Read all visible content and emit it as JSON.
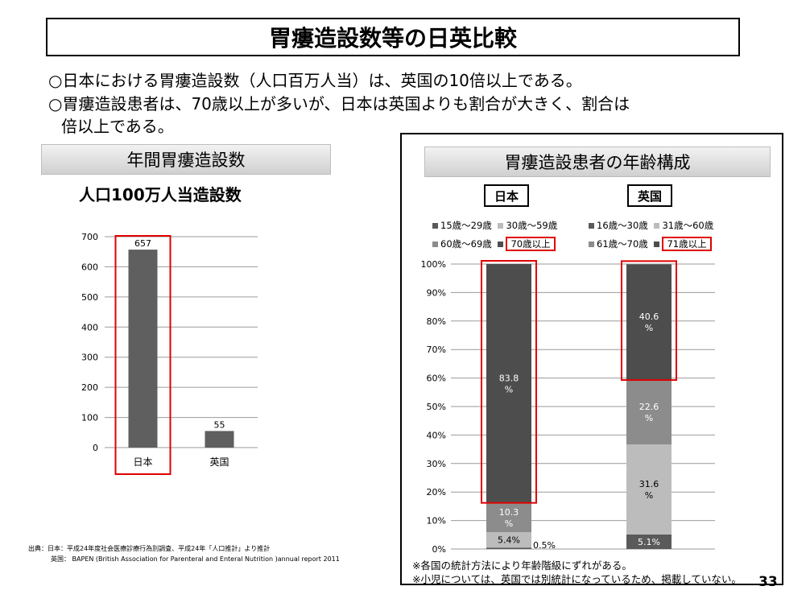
{
  "title": "胃瘻造設数等の日英比較",
  "bullets": [
    "○日本における胃瘻造設数（人口百万人当）は、英国の10倍以上である。",
    "○胃瘻造設患者は、70歳以上が多いが、日本は英国よりも割合が大きく、割合は",
    "倍以上である。"
  ],
  "left_section": {
    "header": "年間胃瘻造設数",
    "subtitle": "人口100万人当造設数"
  },
  "right_section": {
    "header": "胃瘻造設患者の年齢構成",
    "countries": [
      "日本",
      "英国"
    ],
    "legend_japan": [
      "15歳～29歳",
      "30歳～59歳",
      "60歳～69歳",
      "70歳以上"
    ],
    "legend_uk": [
      "16歳～30歳",
      "31歳～60歳",
      "61歳～70歳",
      "71歳以上"
    ]
  },
  "notes": [
    "※各国の統計方法により年齢階級にずれがある。",
    "※小児については、英国では別統計になっているため、掲載していない。"
  ],
  "source": [
    "出典：日本：平成24年度社会医療診療行為別調査、平成24年「人口推計」より推計",
    "英国： BAPEN (British Association for Parenteral and Enteral Nutrition )annual report 2011"
  ],
  "page_number": "33",
  "chart_data": [
    {
      "type": "bar",
      "categories": [
        "日本",
        "英国"
      ],
      "values": [
        657,
        55
      ],
      "data_labels": [
        "657",
        "55"
      ],
      "ylim": [
        0,
        700
      ],
      "yticks": [
        "0",
        "100",
        "200",
        "300",
        "400",
        "500",
        "600",
        "700"
      ],
      "grid": true,
      "highlight_category": "日本",
      "bar_color": "#5f5f5f",
      "highlight_color": "#e00000"
    },
    {
      "type": "bar",
      "stacked": true,
      "ylim": [
        0,
        100
      ],
      "yticks": [
        "0%",
        "10%",
        "20%",
        "30%",
        "40%",
        "50%",
        "60%",
        "70%",
        "80%",
        "90%",
        "100%"
      ],
      "grid": true,
      "stacks": [
        {
          "name": "日本",
          "segments": [
            {
              "value": 0.5,
              "label": "0.5%",
              "color": "#5a5a5a"
            },
            {
              "value": 5.4,
              "label": "5.4%",
              "color": "#bcbcbc"
            },
            {
              "value": 10.3,
              "label": "10.3\n%",
              "color": "#8c8c8c"
            },
            {
              "value": 83.8,
              "label": "83.8\n%",
              "color": "#4d4d4d"
            }
          ]
        },
        {
          "name": "英国",
          "segments": [
            {
              "value": 5.1,
              "label": "5.1%",
              "color": "#5a5a5a"
            },
            {
              "value": 31.6,
              "label": "31.6\n%",
              "color": "#bcbcbc"
            },
            {
              "value": 22.6,
              "label": "22.6\n%",
              "color": "#8c8c8c"
            },
            {
              "value": 40.6,
              "label": "40.6\n%",
              "color": "#4d4d4d"
            }
          ]
        }
      ],
      "legend_colors": [
        "#5a5a5a",
        "#bcbcbc",
        "#8c8c8c",
        "#4d4d4d"
      ],
      "highlight_color": "#e00000"
    }
  ]
}
